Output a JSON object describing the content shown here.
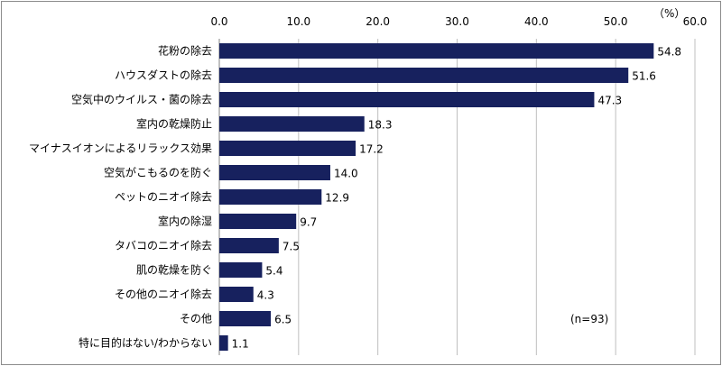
{
  "chart_data": {
    "type": "bar",
    "orientation": "horizontal",
    "unit": "（%）",
    "note": "(n=93)",
    "xlim": [
      0,
      60
    ],
    "ticks": [
      "0.0",
      "10.0",
      "20.0",
      "30.0",
      "40.0",
      "50.0",
      "60.0"
    ],
    "tick_values": [
      0,
      10,
      20,
      30,
      40,
      50,
      60
    ],
    "categories": [
      "花粉の除去",
      "ハウスダストの除去",
      "空気中のウイルス・菌の除去",
      "室内の乾燥防止",
      "マイナスイオンによるリラックス効果",
      "空気がこもるのを防ぐ",
      "ペットのニオイ除去",
      "室内の除湿",
      "タバコのニオイ除去",
      "肌の乾燥を防ぐ",
      "その他のニオイ除去",
      "その他",
      "特に目的はない/わからない"
    ],
    "values": [
      54.8,
      51.6,
      47.3,
      18.3,
      17.2,
      14.0,
      12.9,
      9.7,
      7.5,
      5.4,
      4.3,
      6.5,
      1.1
    ],
    "value_labels": [
      "54.8",
      "51.6",
      "47.3",
      "18.3",
      "17.2",
      "14.0",
      "12.9",
      "9.7",
      "7.5",
      "5.4",
      "4.3",
      "6.5",
      "1.1"
    ],
    "bar_color": "#17215e",
    "grid": true,
    "grid_color": "#bfbfbf"
  }
}
